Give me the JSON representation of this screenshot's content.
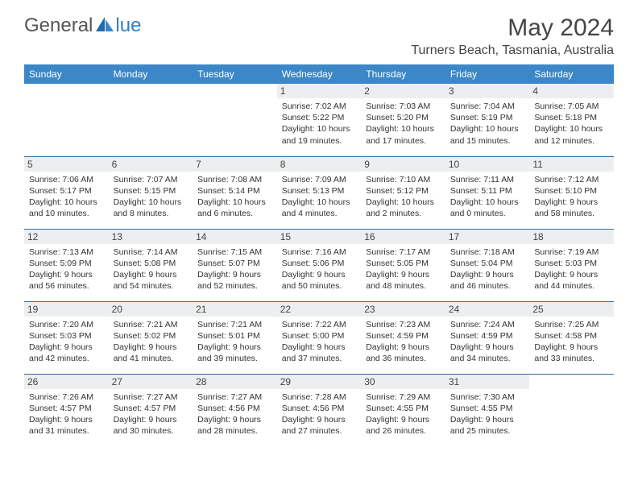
{
  "logo": {
    "textGeneral": "General",
    "textBlue": "lue"
  },
  "title": "May 2024",
  "location": "Turners Beach, Tasmania, Australia",
  "colors": {
    "headerBg": "#3b87c8",
    "headerText": "#ffffff",
    "dayNumBg": "#eceeef",
    "rowBorder": "#2e6da4",
    "bodyText": "#333333",
    "titleText": "#444444",
    "logoBlue": "#2f7fc0"
  },
  "dayNames": [
    "Sunday",
    "Monday",
    "Tuesday",
    "Wednesday",
    "Thursday",
    "Friday",
    "Saturday"
  ],
  "weeks": [
    [
      {
        "n": "",
        "empty": true
      },
      {
        "n": "",
        "empty": true
      },
      {
        "n": "",
        "empty": true
      },
      {
        "n": "1",
        "sr": "Sunrise: 7:02 AM",
        "ss": "Sunset: 5:22 PM",
        "dl1": "Daylight: 10 hours",
        "dl2": "and 19 minutes."
      },
      {
        "n": "2",
        "sr": "Sunrise: 7:03 AM",
        "ss": "Sunset: 5:20 PM",
        "dl1": "Daylight: 10 hours",
        "dl2": "and 17 minutes."
      },
      {
        "n": "3",
        "sr": "Sunrise: 7:04 AM",
        "ss": "Sunset: 5:19 PM",
        "dl1": "Daylight: 10 hours",
        "dl2": "and 15 minutes."
      },
      {
        "n": "4",
        "sr": "Sunrise: 7:05 AM",
        "ss": "Sunset: 5:18 PM",
        "dl1": "Daylight: 10 hours",
        "dl2": "and 12 minutes."
      }
    ],
    [
      {
        "n": "5",
        "sr": "Sunrise: 7:06 AM",
        "ss": "Sunset: 5:17 PM",
        "dl1": "Daylight: 10 hours",
        "dl2": "and 10 minutes."
      },
      {
        "n": "6",
        "sr": "Sunrise: 7:07 AM",
        "ss": "Sunset: 5:15 PM",
        "dl1": "Daylight: 10 hours",
        "dl2": "and 8 minutes."
      },
      {
        "n": "7",
        "sr": "Sunrise: 7:08 AM",
        "ss": "Sunset: 5:14 PM",
        "dl1": "Daylight: 10 hours",
        "dl2": "and 6 minutes."
      },
      {
        "n": "8",
        "sr": "Sunrise: 7:09 AM",
        "ss": "Sunset: 5:13 PM",
        "dl1": "Daylight: 10 hours",
        "dl2": "and 4 minutes."
      },
      {
        "n": "9",
        "sr": "Sunrise: 7:10 AM",
        "ss": "Sunset: 5:12 PM",
        "dl1": "Daylight: 10 hours",
        "dl2": "and 2 minutes."
      },
      {
        "n": "10",
        "sr": "Sunrise: 7:11 AM",
        "ss": "Sunset: 5:11 PM",
        "dl1": "Daylight: 10 hours",
        "dl2": "and 0 minutes."
      },
      {
        "n": "11",
        "sr": "Sunrise: 7:12 AM",
        "ss": "Sunset: 5:10 PM",
        "dl1": "Daylight: 9 hours",
        "dl2": "and 58 minutes."
      }
    ],
    [
      {
        "n": "12",
        "sr": "Sunrise: 7:13 AM",
        "ss": "Sunset: 5:09 PM",
        "dl1": "Daylight: 9 hours",
        "dl2": "and 56 minutes."
      },
      {
        "n": "13",
        "sr": "Sunrise: 7:14 AM",
        "ss": "Sunset: 5:08 PM",
        "dl1": "Daylight: 9 hours",
        "dl2": "and 54 minutes."
      },
      {
        "n": "14",
        "sr": "Sunrise: 7:15 AM",
        "ss": "Sunset: 5:07 PM",
        "dl1": "Daylight: 9 hours",
        "dl2": "and 52 minutes."
      },
      {
        "n": "15",
        "sr": "Sunrise: 7:16 AM",
        "ss": "Sunset: 5:06 PM",
        "dl1": "Daylight: 9 hours",
        "dl2": "and 50 minutes."
      },
      {
        "n": "16",
        "sr": "Sunrise: 7:17 AM",
        "ss": "Sunset: 5:05 PM",
        "dl1": "Daylight: 9 hours",
        "dl2": "and 48 minutes."
      },
      {
        "n": "17",
        "sr": "Sunrise: 7:18 AM",
        "ss": "Sunset: 5:04 PM",
        "dl1": "Daylight: 9 hours",
        "dl2": "and 46 minutes."
      },
      {
        "n": "18",
        "sr": "Sunrise: 7:19 AM",
        "ss": "Sunset: 5:03 PM",
        "dl1": "Daylight: 9 hours",
        "dl2": "and 44 minutes."
      }
    ],
    [
      {
        "n": "19",
        "sr": "Sunrise: 7:20 AM",
        "ss": "Sunset: 5:03 PM",
        "dl1": "Daylight: 9 hours",
        "dl2": "and 42 minutes."
      },
      {
        "n": "20",
        "sr": "Sunrise: 7:21 AM",
        "ss": "Sunset: 5:02 PM",
        "dl1": "Daylight: 9 hours",
        "dl2": "and 41 minutes."
      },
      {
        "n": "21",
        "sr": "Sunrise: 7:21 AM",
        "ss": "Sunset: 5:01 PM",
        "dl1": "Daylight: 9 hours",
        "dl2": "and 39 minutes."
      },
      {
        "n": "22",
        "sr": "Sunrise: 7:22 AM",
        "ss": "Sunset: 5:00 PM",
        "dl1": "Daylight: 9 hours",
        "dl2": "and 37 minutes."
      },
      {
        "n": "23",
        "sr": "Sunrise: 7:23 AM",
        "ss": "Sunset: 4:59 PM",
        "dl1": "Daylight: 9 hours",
        "dl2": "and 36 minutes."
      },
      {
        "n": "24",
        "sr": "Sunrise: 7:24 AM",
        "ss": "Sunset: 4:59 PM",
        "dl1": "Daylight: 9 hours",
        "dl2": "and 34 minutes."
      },
      {
        "n": "25",
        "sr": "Sunrise: 7:25 AM",
        "ss": "Sunset: 4:58 PM",
        "dl1": "Daylight: 9 hours",
        "dl2": "and 33 minutes."
      }
    ],
    [
      {
        "n": "26",
        "sr": "Sunrise: 7:26 AM",
        "ss": "Sunset: 4:57 PM",
        "dl1": "Daylight: 9 hours",
        "dl2": "and 31 minutes."
      },
      {
        "n": "27",
        "sr": "Sunrise: 7:27 AM",
        "ss": "Sunset: 4:57 PM",
        "dl1": "Daylight: 9 hours",
        "dl2": "and 30 minutes."
      },
      {
        "n": "28",
        "sr": "Sunrise: 7:27 AM",
        "ss": "Sunset: 4:56 PM",
        "dl1": "Daylight: 9 hours",
        "dl2": "and 28 minutes."
      },
      {
        "n": "29",
        "sr": "Sunrise: 7:28 AM",
        "ss": "Sunset: 4:56 PM",
        "dl1": "Daylight: 9 hours",
        "dl2": "and 27 minutes."
      },
      {
        "n": "30",
        "sr": "Sunrise: 7:29 AM",
        "ss": "Sunset: 4:55 PM",
        "dl1": "Daylight: 9 hours",
        "dl2": "and 26 minutes."
      },
      {
        "n": "31",
        "sr": "Sunrise: 7:30 AM",
        "ss": "Sunset: 4:55 PM",
        "dl1": "Daylight: 9 hours",
        "dl2": "and 25 minutes."
      },
      {
        "n": "",
        "empty": true
      }
    ]
  ]
}
